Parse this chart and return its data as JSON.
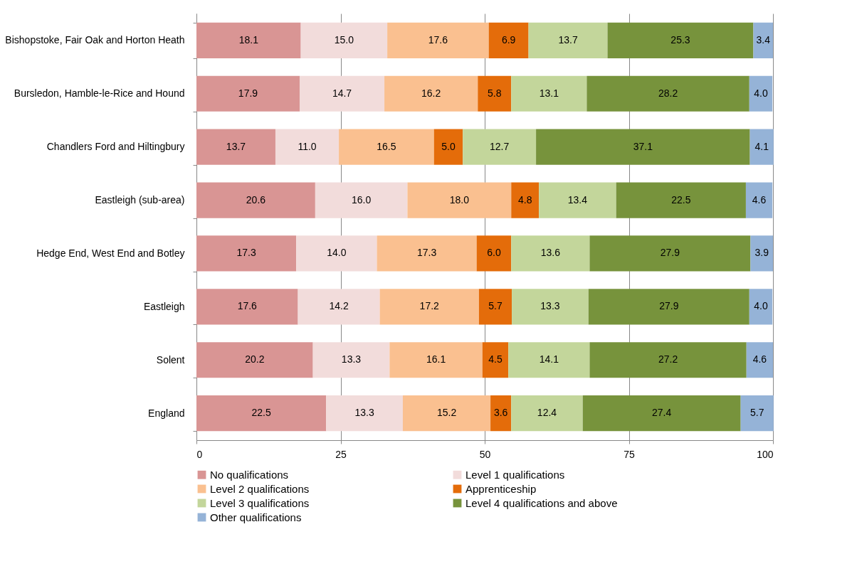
{
  "chart_data": {
    "type": "bar",
    "orientation": "horizontal",
    "stacked": true,
    "grid": "x",
    "legend": "bottom",
    "categories": [
      "Bishopstoke, Fair Oak and Horton Heath",
      "Bursledon, Hamble-le-Rice and Hound",
      "Chandlers Ford and Hiltingbury",
      "Eastleigh (sub-area)",
      "Hedge End, West End and Botley",
      "Eastleigh",
      "Solent",
      "England"
    ],
    "xlim": [
      0,
      100
    ],
    "xticks": [
      0,
      25,
      50,
      75,
      100
    ],
    "series": [
      {
        "name": "No qualifications",
        "color": "#d99594",
        "values": [
          18.1,
          17.9,
          13.7,
          20.6,
          17.3,
          17.6,
          20.2,
          22.5
        ],
        "value_labels": [
          "18.1",
          "17.9",
          "13.7",
          "20.6",
          "17.3",
          "17.6",
          "20.2",
          "22.5"
        ]
      },
      {
        "name": "Level 1 qualifications",
        "color": "#f2dcdb",
        "values": [
          15.0,
          14.7,
          11.0,
          16.0,
          14.0,
          14.2,
          13.3,
          13.3
        ],
        "value_labels": [
          "15.0",
          "14.7",
          "11.0",
          "16.0",
          "14.0",
          "14.2",
          "13.3",
          "13.3"
        ]
      },
      {
        "name": "Level 2 qualifications",
        "color": "#fac090",
        "values": [
          17.6,
          16.2,
          16.5,
          18.0,
          17.3,
          17.2,
          16.1,
          15.2
        ],
        "value_labels": [
          "17.6",
          "16.2",
          "16.5",
          "18.0",
          "17.3",
          "17.2",
          "16.1",
          "15.2"
        ]
      },
      {
        "name": "Apprenticeship",
        "color": "#e46c0a",
        "values": [
          6.9,
          5.8,
          5.0,
          4.8,
          6.0,
          5.7,
          4.5,
          3.6
        ],
        "value_labels": [
          "6.9",
          "5.8",
          "5.0",
          "4.8",
          "6.0",
          "5.7",
          "4.5",
          "3.6"
        ]
      },
      {
        "name": "Level 3 qualifications",
        "color": "#c3d69b",
        "values": [
          13.7,
          13.1,
          12.7,
          13.4,
          13.6,
          13.3,
          14.1,
          12.4
        ],
        "value_labels": [
          "13.7",
          "13.1",
          "12.7",
          "13.4",
          "13.6",
          "13.3",
          "14.1",
          "12.4"
        ]
      },
      {
        "name": "Level 4 qualifications and above",
        "color": "#77933c",
        "values": [
          25.3,
          28.2,
          37.1,
          22.5,
          27.9,
          27.9,
          27.2,
          27.4
        ],
        "value_labels": [
          "25.3",
          "28.2",
          "37.1",
          "22.5",
          "27.9",
          "27.9",
          "27.2",
          "27.4"
        ]
      },
      {
        "name": "Other qualifications",
        "color": "#95b3d7",
        "values": [
          3.4,
          4.0,
          4.1,
          4.6,
          3.9,
          4.0,
          4.6,
          5.7
        ],
        "value_labels": [
          "3.4",
          "4.0",
          "4.1",
          "4.6",
          "3.9",
          "4.0",
          "4.6",
          "5.7"
        ]
      }
    ]
  }
}
